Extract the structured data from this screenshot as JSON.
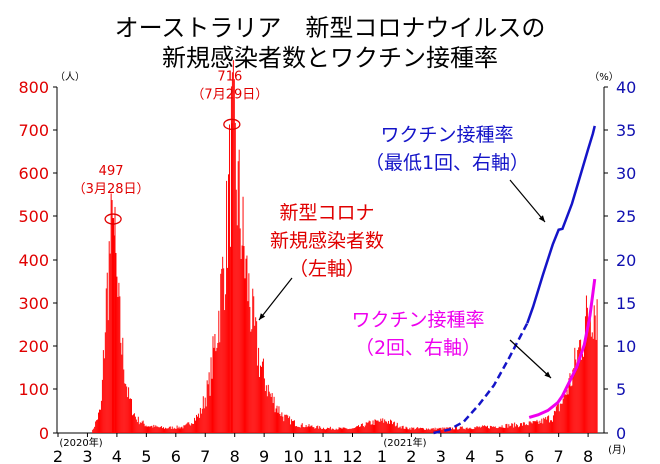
{
  "chart_data": {
    "type": "bar",
    "title": [
      "オーストラリア　新型コロナウイルスの",
      "新規感染者数とワクチン接種率"
    ],
    "y_left": {
      "unit": "（人）",
      "range": [
        0,
        800
      ],
      "ticks": [
        "0",
        "100",
        "200",
        "300",
        "400",
        "500",
        "600",
        "700",
        "800"
      ],
      "color": "#e00000"
    },
    "y_right": {
      "unit": "（%）",
      "range": [
        0,
        40
      ],
      "ticks": [
        "0",
        "5",
        "10",
        "15",
        "20",
        "25",
        "30",
        "35",
        "40"
      ],
      "color": "#1010b0"
    },
    "x_axis": {
      "tick_labels": [
        "2",
        "3",
        "4",
        "5",
        "6",
        "7",
        "8",
        "9",
        "10",
        "11",
        "12",
        "1",
        "2",
        "3",
        "4",
        "5",
        "6",
        "7",
        "8"
      ],
      "year_labels": [
        {
          "text": "(2020年)",
          "at_tick": 0
        },
        {
          "text": "(2021年)",
          "at_tick": 11
        }
      ],
      "unit": "(月)"
    },
    "series": [
      {
        "name": "新型コロナ新規感染者数（左軸）",
        "axis": "left",
        "kind": "bar",
        "color": "#ff0000",
        "peaks": [
          {
            "date": "2020-03-28",
            "value": 497,
            "label_value": "497",
            "label_date": "（3月28日）"
          },
          {
            "date": "2020-07-29",
            "value": 716,
            "label_value": "716",
            "label_date": "（7月29日）"
          }
        ],
        "approx_daily_profile": [
          [
            "2020-03-05",
            0
          ],
          [
            "2020-03-15",
            60
          ],
          [
            "2020-03-20",
            300
          ],
          [
            "2020-03-24",
            440
          ],
          [
            "2020-03-28",
            497
          ],
          [
            "2020-04-01",
            330
          ],
          [
            "2020-04-06",
            200
          ],
          [
            "2020-04-12",
            90
          ],
          [
            "2020-04-20",
            35
          ],
          [
            "2020-05-01",
            18
          ],
          [
            "2020-05-20",
            12
          ],
          [
            "2020-06-10",
            15
          ],
          [
            "2020-06-25",
            45
          ],
          [
            "2020-07-05",
            120
          ],
          [
            "2020-07-15",
            290
          ],
          [
            "2020-07-22",
            450
          ],
          [
            "2020-07-29",
            716
          ],
          [
            "2020-08-05",
            560
          ],
          [
            "2020-08-12",
            400
          ],
          [
            "2020-08-20",
            260
          ],
          [
            "2020-08-28",
            160
          ],
          [
            "2020-09-07",
            90
          ],
          [
            "2020-09-20",
            40
          ],
          [
            "2020-10-05",
            20
          ],
          [
            "2020-11-01",
            12
          ],
          [
            "2020-12-01",
            10
          ],
          [
            "2020-12-20",
            25
          ],
          [
            "2021-01-05",
            30
          ],
          [
            "2021-01-25",
            12
          ],
          [
            "2021-02-20",
            10
          ],
          [
            "2021-03-20",
            12
          ],
          [
            "2021-04-20",
            15
          ],
          [
            "2021-05-20",
            20
          ],
          [
            "2021-06-10",
            25
          ],
          [
            "2021-06-25",
            40
          ],
          [
            "2021-07-05",
            80
          ],
          [
            "2021-07-15",
            140
          ],
          [
            "2021-07-25",
            230
          ],
          [
            "2021-08-01",
            290
          ],
          [
            "2021-08-06",
            320
          ],
          [
            "2021-08-10",
            300
          ]
        ],
        "annotation": [
          "新型コロナ",
          "新規感染者数",
          "（左軸）"
        ]
      },
      {
        "name": "ワクチン接種率（最低1回、右軸）",
        "axis": "right",
        "kind": "line",
        "color": "#1414c8",
        "dashed_until": "2021-05-30",
        "points": [
          [
            "2021-02-22",
            0
          ],
          [
            "2021-03-10",
            0.4
          ],
          [
            "2021-03-25",
            1.3
          ],
          [
            "2021-04-10",
            3.3
          ],
          [
            "2021-04-25",
            5.5
          ],
          [
            "2021-05-10",
            8.5
          ],
          [
            "2021-05-30",
            12.7
          ],
          [
            "2021-06-05",
            14.6
          ],
          [
            "2021-06-15",
            18.3
          ],
          [
            "2021-06-25",
            21.8
          ],
          [
            "2021-07-01",
            23.5
          ],
          [
            "2021-07-05",
            23.6
          ],
          [
            "2021-07-15",
            26.5
          ],
          [
            "2021-07-25",
            30.2
          ],
          [
            "2021-08-01",
            32.8
          ],
          [
            "2021-08-06",
            34.6
          ],
          [
            "2021-08-08",
            35.5
          ]
        ],
        "annotation": [
          "ワクチン接種率",
          "（最低1回、右軸）"
        ]
      },
      {
        "name": "ワクチン接種率（2回、右軸）",
        "axis": "right",
        "kind": "line",
        "color": "#ee00ee",
        "points": [
          [
            "2021-06-01",
            1.8
          ],
          [
            "2021-06-10",
            2.1
          ],
          [
            "2021-06-20",
            2.6
          ],
          [
            "2021-06-30",
            3.5
          ],
          [
            "2021-07-05",
            4.3
          ],
          [
            "2021-07-10",
            5.4
          ],
          [
            "2021-07-20",
            7.6
          ],
          [
            "2021-07-28",
            10.2
          ],
          [
            "2021-08-03",
            13.6
          ],
          [
            "2021-08-08",
            17.8
          ]
        ],
        "annotation": [
          "ワクチン接種率",
          "（2回、右軸）"
        ]
      }
    ],
    "grid": false,
    "legend": "none"
  }
}
